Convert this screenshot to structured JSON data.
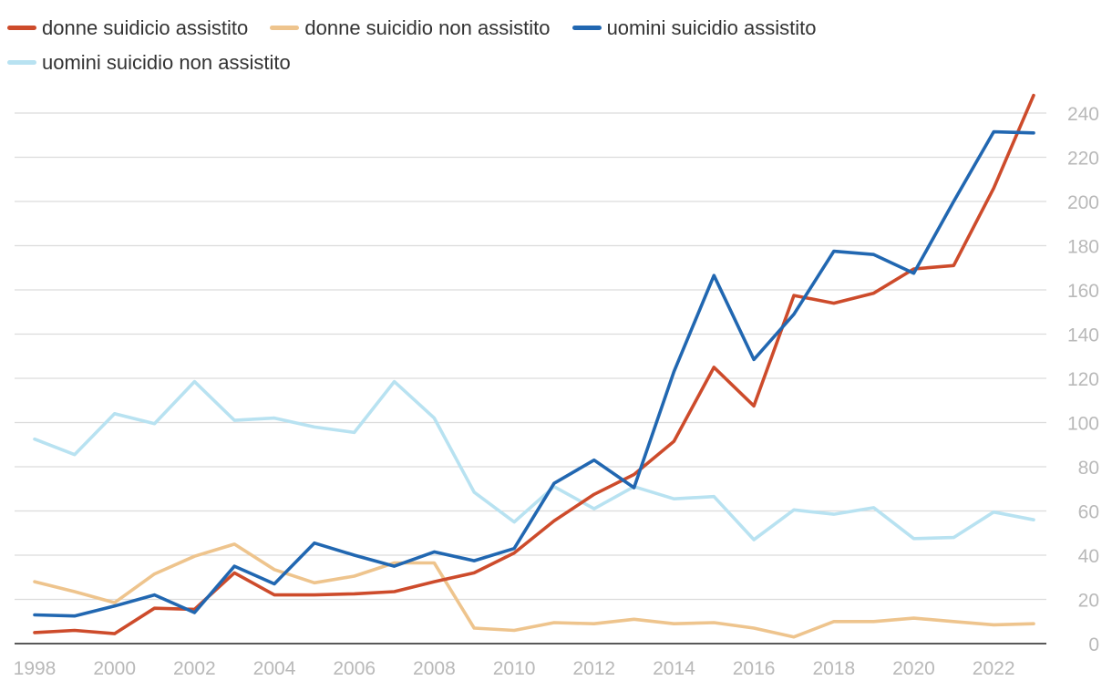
{
  "chart_data": {
    "type": "line",
    "title": "",
    "xlabel": "",
    "ylabel": "",
    "x": [
      1998,
      1999,
      2000,
      2001,
      2002,
      2003,
      2004,
      2005,
      2006,
      2007,
      2008,
      2009,
      2010,
      2011,
      2012,
      2013,
      2014,
      2015,
      2016,
      2017,
      2018,
      2019,
      2020,
      2021,
      2022,
      2023
    ],
    "x_ticks": [
      "1998",
      "2000",
      "2002",
      "2004",
      "2006",
      "2008",
      "2010",
      "2012",
      "2014",
      "2016",
      "2018",
      "2020",
      "2022"
    ],
    "y_ticks": [
      "0",
      "20",
      "40",
      "60",
      "80",
      "100",
      "120",
      "140",
      "160",
      "180",
      "200",
      "220",
      "240"
    ],
    "ylim": [
      0,
      250
    ],
    "xlim": [
      1998,
      2023
    ],
    "legend_position": "top-left",
    "series": [
      {
        "name": "donne suidicio assistito",
        "color": "#cd4b2b",
        "values": [
          5,
          6,
          4.5,
          16,
          15.5,
          32,
          22,
          22,
          22.5,
          23.5,
          28,
          32,
          41,
          55.5,
          67.5,
          76.5,
          91.5,
          125,
          107.5,
          157.5,
          154,
          158.5,
          169.5,
          171,
          206,
          248
        ]
      },
      {
        "name": "donne suicidio non assistito",
        "color": "#eec48d",
        "values": [
          28,
          23.5,
          18.5,
          31.5,
          39.5,
          45,
          33.5,
          27.5,
          30.5,
          36.5,
          36.5,
          7,
          6,
          9.5,
          9,
          11,
          9,
          9.5,
          7,
          3,
          10,
          10,
          11.5,
          10,
          8.5,
          9
        ]
      },
      {
        "name": "uomini suicidio assistito",
        "color": "#2167b1",
        "values": [
          13,
          12.5,
          17,
          22,
          14,
          35,
          27,
          45.5,
          40,
          35,
          41.5,
          37.5,
          43,
          72.5,
          83,
          70.5,
          123,
          166.5,
          128.5,
          149,
          177.5,
          176,
          167.5,
          200,
          231.5,
          231
        ]
      },
      {
        "name": "uomini suicidio non assistito",
        "color": "#b8e2f1",
        "values": [
          92.5,
          85.5,
          104,
          99.5,
          118.5,
          101,
          102,
          98,
          95.5,
          118.5,
          102,
          68.5,
          55,
          71,
          61,
          71,
          65.5,
          66.5,
          47,
          60.5,
          58.5,
          61.5,
          47.5,
          48,
          59.5,
          56
        ]
      }
    ]
  }
}
